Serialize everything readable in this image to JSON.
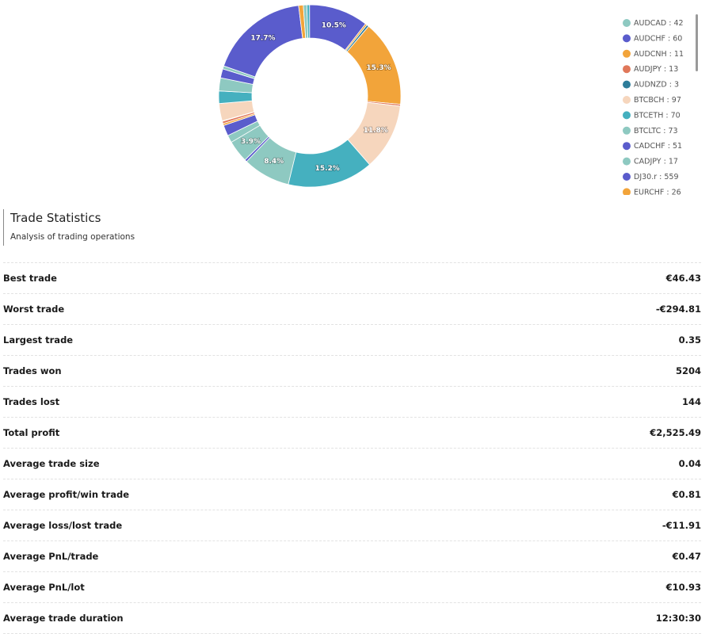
{
  "chart_data": {
    "type": "donut",
    "categories": [
      "AUDCAD",
      "AUDCHF",
      "AUDCNH",
      "AUDJPY",
      "AUDNZD",
      "BTCBCH",
      "BTCETH",
      "BTCLTC",
      "CADCHF",
      "CADJPY",
      "DJ30.r",
      "EURCHF",
      null,
      null,
      null,
      null,
      null,
      null,
      null,
      null,
      null,
      null,
      null,
      null
    ],
    "values": [
      42,
      60,
      11,
      13,
      3,
      97,
      70,
      73,
      51,
      17,
      559,
      26,
      20,
      15,
      332,
      10,
      12,
      483,
      10,
      373,
      480,
      265,
      13,
      123
    ],
    "value_labels": [
      null,
      null,
      null,
      null,
      null,
      null,
      null,
      null,
      null,
      null,
      "17.7%",
      null,
      null,
      null,
      "10.5%",
      null,
      null,
      "15.3%",
      null,
      "11.8%",
      "15.2%",
      "8.4%",
      null,
      "3.9%"
    ],
    "colors": [
      "#8ec9c1",
      "#5a5ccc",
      "#f2a43a",
      "#e0785a",
      "#2e7d9a",
      "#f6d6bd",
      "#45b0bf",
      "#8ec9c1",
      "#5a5ccc",
      "#8ec9c1",
      "#5a5ccc",
      "#f2a43a",
      "#8ec9c1",
      "#45b0bf",
      "#5a5ccc",
      "#f2a43a",
      "#2e7d9a",
      "#f2a43a",
      "#e0785a",
      "#f6d6bd",
      "#45b0bf",
      "#8ec9c1",
      "#5a5ccc",
      "#8ec9c1"
    ],
    "legend_separator": " : "
  },
  "statistics": {
    "title": "Trade Statistics",
    "subtitle": "Analysis of trading operations",
    "rows": [
      [
        "Best trade",
        "€46.43"
      ],
      [
        "Worst trade",
        "-€294.81"
      ],
      [
        "Largest trade",
        "0.35"
      ],
      [
        "Trades won",
        "5204"
      ],
      [
        "Trades lost",
        "144"
      ],
      [
        "Total profit",
        "€2,525.49"
      ],
      [
        "Average trade size",
        "0.04"
      ],
      [
        "Average profit/win trade",
        "€0.81"
      ],
      [
        "Average loss/lost trade",
        "-€11.91"
      ],
      [
        "Average PnL/trade",
        "€0.47"
      ],
      [
        "Average PnL/lot",
        "€10.93"
      ],
      [
        "Average trade duration",
        "12:30:30"
      ]
    ]
  }
}
